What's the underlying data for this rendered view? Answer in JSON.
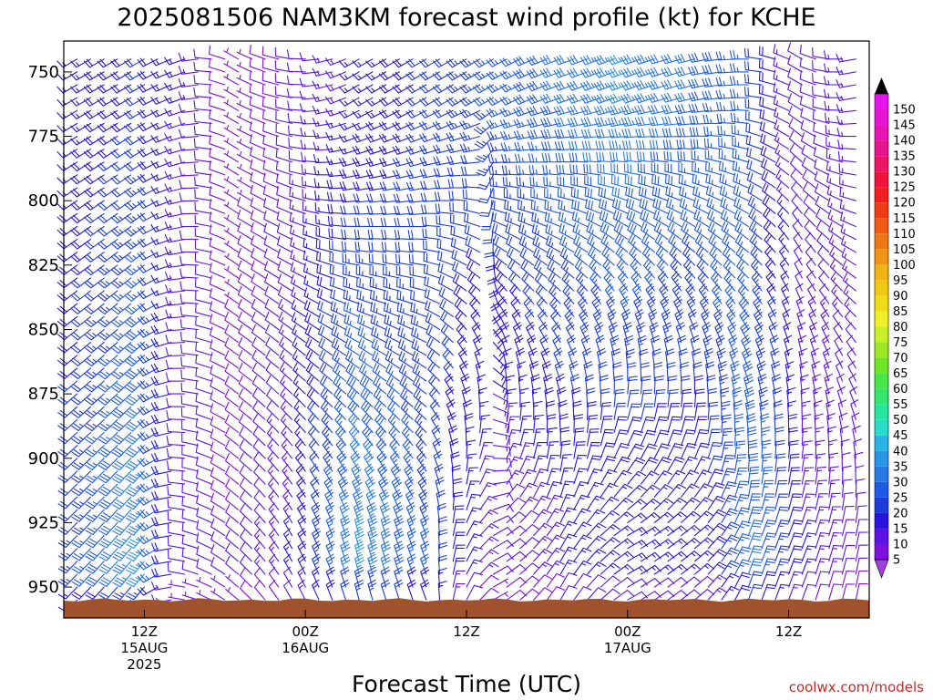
{
  "chart_data": {
    "type": "wind-barb-profile",
    "title": "2025081506 NAM3KM forecast wind profile (kt) for KCHE",
    "xlabel": "Forecast Time (UTC)",
    "ylabel": "",
    "y_axis": {
      "scale": "pressure",
      "units": "hPa",
      "range": [
        962,
        738
      ],
      "inverted": true,
      "ticks": [
        {
          "value": 750,
          "label": "750"
        },
        {
          "value": 775,
          "label": "775"
        },
        {
          "value": 800,
          "label": "800"
        },
        {
          "value": 825,
          "label": "825"
        },
        {
          "value": 850,
          "label": "850"
        },
        {
          "value": 875,
          "label": "875"
        },
        {
          "value": 900,
          "label": "900"
        },
        {
          "value": 925,
          "label": "925"
        },
        {
          "value": 950,
          "label": "950"
        }
      ]
    },
    "x_axis": {
      "units": "forecast hour",
      "range": [
        0,
        60
      ],
      "ticks": [
        {
          "value": 6,
          "lines": [
            "12Z",
            "15AUG",
            "2025"
          ]
        },
        {
          "value": 18,
          "lines": [
            "00Z",
            "16AUG"
          ]
        },
        {
          "value": 30,
          "lines": [
            "12Z"
          ]
        },
        {
          "value": 42,
          "lines": [
            "00Z",
            "17AUG"
          ]
        },
        {
          "value": 54,
          "lines": [
            "12Z"
          ]
        }
      ]
    },
    "colorbar": {
      "units": "kt",
      "labels": [
        "5",
        "10",
        "15",
        "20",
        "25",
        "30",
        "35",
        "40",
        "45",
        "50",
        "55",
        "60",
        "65",
        "70",
        "75",
        "80",
        "85",
        "90",
        "95",
        "100",
        "105",
        "110",
        "115",
        "120",
        "125",
        "130",
        "135",
        "140",
        "145",
        "150"
      ],
      "colors": [
        "#7d10dc",
        "#5a14e6",
        "#2814dc",
        "#1e3cdc",
        "#1e5ae6",
        "#2878e6",
        "#2896e6",
        "#28b4e6",
        "#28dcc8",
        "#28e6a0",
        "#32e66e",
        "#46e646",
        "#6ee628",
        "#a0e628",
        "#c8f028",
        "#f0f028",
        "#f0dc14",
        "#f0c814",
        "#f0b414",
        "#f09614",
        "#f07814",
        "#f05a14",
        "#f03c14",
        "#f01e1e",
        "#f0143c",
        "#f01464",
        "#e6148c",
        "#e614b4",
        "#e614d2",
        "#e614f0"
      ],
      "extend_top": "#000000",
      "extend_bottom": "#a040e0"
    },
    "terrain": {
      "color": "#a0522d",
      "surface_pressure": 955
    },
    "barbs": {
      "times": [
        0,
        1,
        2,
        3,
        4,
        5,
        6,
        7,
        8,
        9,
        10,
        11,
        12,
        13,
        14,
        15,
        16,
        17,
        18,
        19,
        20,
        21,
        22,
        23,
        24,
        25,
        26,
        27,
        28,
        29,
        30,
        31,
        32,
        33,
        34,
        35,
        36,
        37,
        38,
        39,
        40,
        41,
        42,
        43,
        44,
        45,
        46,
        47,
        48,
        49,
        50,
        51,
        52,
        53,
        54,
        55,
        56,
        57,
        58,
        59,
        60
      ],
      "levels": [
        745,
        750,
        755,
        760,
        765,
        770,
        775,
        780,
        785,
        790,
        795,
        800,
        805,
        810,
        815,
        820,
        825,
        830,
        835,
        840,
        845,
        850,
        855,
        860,
        865,
        870,
        875,
        880,
        885,
        890,
        895,
        900,
        905,
        910,
        915,
        920,
        925,
        930,
        935,
        940,
        945,
        950,
        955,
        960
      ],
      "time_keyframes": [
        {
          "t": 0,
          "upper_speed": 15,
          "upper_dir": 240,
          "lower_speed": 20,
          "lower_dir": 225
        },
        {
          "t": 6,
          "upper_speed": 20,
          "upper_dir": 240,
          "lower_speed": 35,
          "lower_dir": 220
        },
        {
          "t": 9,
          "upper_speed": 15,
          "upper_dir": 250,
          "lower_speed": 10,
          "lower_dir": 280
        },
        {
          "t": 13,
          "upper_speed": 5,
          "upper_dir": 300,
          "lower_speed": 10,
          "lower_dir": 310
        },
        {
          "t": 17,
          "upper_speed": 10,
          "upper_dir": 280,
          "lower_speed": 15,
          "lower_dir": 330
        },
        {
          "t": 22,
          "upper_speed": 15,
          "upper_dir": 240,
          "lower_speed": 35,
          "lower_dir": 345
        },
        {
          "t": 27,
          "upper_speed": 20,
          "upper_dir": 240,
          "lower_speed": 25,
          "lower_dir": 340
        },
        {
          "t": 32,
          "upper_speed": 25,
          "upper_dir": 240,
          "lower_speed": 10,
          "lower_dir": 60
        },
        {
          "t": 37,
          "upper_speed": 30,
          "upper_dir": 250,
          "lower_speed": 15,
          "lower_dir": 30
        },
        {
          "t": 42,
          "upper_speed": 35,
          "upper_dir": 250,
          "lower_speed": 15,
          "lower_dir": 60
        },
        {
          "t": 47,
          "upper_speed": 30,
          "upper_dir": 255,
          "lower_speed": 15,
          "lower_dir": 50
        },
        {
          "t": 51,
          "upper_speed": 25,
          "upper_dir": 270,
          "lower_speed": 30,
          "lower_dir": 20
        },
        {
          "t": 55,
          "upper_speed": 10,
          "upper_dir": 300,
          "lower_speed": 15,
          "lower_dir": 20
        },
        {
          "t": 60,
          "upper_speed": 15,
          "upper_dir": 250,
          "lower_speed": 10,
          "lower_dir": 10
        }
      ],
      "upper_level": 760,
      "lower_level": 930
    },
    "grid": false,
    "legend": "right"
  },
  "credit": "coolwx.com/models"
}
